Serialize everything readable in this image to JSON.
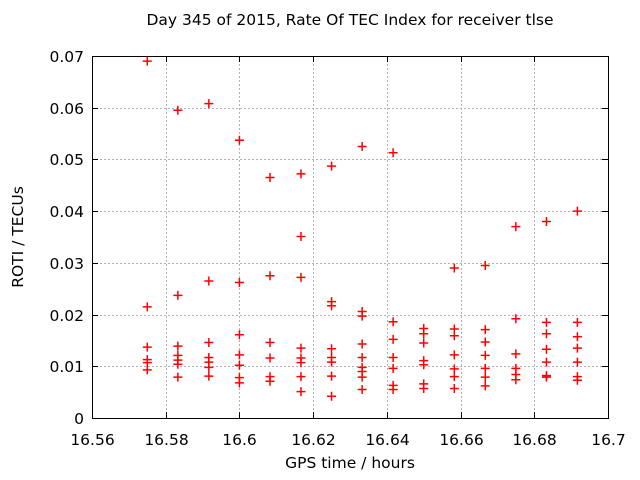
{
  "figure": {
    "title": "Day 345 of 2015, Rate Of TEC Index for receiver tlse",
    "xlabel": "GPS time / hours",
    "ylabel": "ROTI / TECUs"
  },
  "chart_data": {
    "type": "scatter",
    "title": "Day 345 of 2015, Rate Of TEC Index for receiver tlse",
    "xlabel": "GPS time / hours",
    "ylabel": "ROTI / TECUs",
    "xlim": [
      16.56,
      16.7
    ],
    "ylim": [
      0,
      0.07
    ],
    "grid": true,
    "legend_position": "none",
    "marker": "plus-cross",
    "marker_color": "#ff0000",
    "grid_color": "#b0b0b0",
    "axis_color": "#000000",
    "background_color": "#ffffff",
    "xtick_values": [
      16.56,
      16.58,
      16.6,
      16.62,
      16.64,
      16.66,
      16.68,
      16.7
    ],
    "xtick_labels": [
      "16.56",
      "16.58",
      "16.6",
      "16.62",
      "16.64",
      "16.66",
      "16.68",
      "16.7"
    ],
    "ytick_values": [
      0,
      0.01,
      0.02,
      0.03,
      0.04,
      0.05,
      0.06,
      0.07
    ],
    "ytick_labels": [
      "0",
      "0.01",
      "0.02",
      "0.03",
      "0.04",
      "0.05",
      "0.06",
      "0.07"
    ],
    "series": [
      {
        "name": "ROTI",
        "points": [
          [
            16.575,
            0.069
          ],
          [
            16.575,
            0.0215
          ],
          [
            16.575,
            0.0137
          ],
          [
            16.575,
            0.0113
          ],
          [
            16.575,
            0.0107
          ],
          [
            16.575,
            0.0093
          ],
          [
            16.5833,
            0.0595
          ],
          [
            16.5833,
            0.0237
          ],
          [
            16.5833,
            0.0139
          ],
          [
            16.5833,
            0.0121
          ],
          [
            16.5833,
            0.0112
          ],
          [
            16.5833,
            0.0104
          ],
          [
            16.5833,
            0.0079
          ],
          [
            16.5917,
            0.0608
          ],
          [
            16.5917,
            0.0265
          ],
          [
            16.5917,
            0.0146
          ],
          [
            16.5917,
            0.0117
          ],
          [
            16.5917,
            0.0108
          ],
          [
            16.5917,
            0.0098
          ],
          [
            16.5917,
            0.0081
          ],
          [
            16.6,
            0.0537
          ],
          [
            16.6,
            0.0262
          ],
          [
            16.6,
            0.0161
          ],
          [
            16.6,
            0.0122
          ],
          [
            16.6,
            0.0102
          ],
          [
            16.6,
            0.0078
          ],
          [
            16.6,
            0.0068
          ],
          [
            16.6083,
            0.0465
          ],
          [
            16.6083,
            0.0275
          ],
          [
            16.6083,
            0.0146
          ],
          [
            16.6083,
            0.0116
          ],
          [
            16.6083,
            0.008
          ],
          [
            16.6083,
            0.0071
          ],
          [
            16.6167,
            0.0472
          ],
          [
            16.6167,
            0.0351
          ],
          [
            16.6167,
            0.0272
          ],
          [
            16.6167,
            0.0135
          ],
          [
            16.6167,
            0.0116
          ],
          [
            16.6167,
            0.0107
          ],
          [
            16.6167,
            0.008
          ],
          [
            16.6167,
            0.0051
          ],
          [
            16.625,
            0.0487
          ],
          [
            16.625,
            0.0225
          ],
          [
            16.625,
            0.0217
          ],
          [
            16.625,
            0.0134
          ],
          [
            16.625,
            0.0117
          ],
          [
            16.625,
            0.0108
          ],
          [
            16.625,
            0.0081
          ],
          [
            16.625,
            0.0042
          ],
          [
            16.6333,
            0.0525
          ],
          [
            16.6333,
            0.0206
          ],
          [
            16.6333,
            0.0197
          ],
          [
            16.6333,
            0.0143
          ],
          [
            16.6333,
            0.0117
          ],
          [
            16.6333,
            0.0098
          ],
          [
            16.6333,
            0.009
          ],
          [
            16.6333,
            0.0079
          ],
          [
            16.6333,
            0.0055
          ],
          [
            16.6417,
            0.0513
          ],
          [
            16.6417,
            0.0186
          ],
          [
            16.6417,
            0.0152
          ],
          [
            16.6417,
            0.0117
          ],
          [
            16.6417,
            0.0096
          ],
          [
            16.6417,
            0.0063
          ],
          [
            16.6417,
            0.0055
          ],
          [
            16.65,
            0.0173
          ],
          [
            16.65,
            0.0163
          ],
          [
            16.65,
            0.0145
          ],
          [
            16.65,
            0.0111
          ],
          [
            16.65,
            0.0103
          ],
          [
            16.65,
            0.0066
          ],
          [
            16.65,
            0.0057
          ],
          [
            16.6583,
            0.029
          ],
          [
            16.6583,
            0.0172
          ],
          [
            16.6583,
            0.0159
          ],
          [
            16.6583,
            0.0122
          ],
          [
            16.6583,
            0.0095
          ],
          [
            16.6583,
            0.008
          ],
          [
            16.6583,
            0.0057
          ],
          [
            16.6667,
            0.0295
          ],
          [
            16.6667,
            0.0171
          ],
          [
            16.6667,
            0.0147
          ],
          [
            16.6667,
            0.0121
          ],
          [
            16.6667,
            0.0096
          ],
          [
            16.6667,
            0.0079
          ],
          [
            16.6667,
            0.0062
          ],
          [
            16.675,
            0.037
          ],
          [
            16.675,
            0.0192
          ],
          [
            16.675,
            0.0124
          ],
          [
            16.675,
            0.0096
          ],
          [
            16.675,
            0.0084
          ],
          [
            16.675,
            0.0074
          ],
          [
            16.6833,
            0.038
          ],
          [
            16.6833,
            0.0185
          ],
          [
            16.6833,
            0.0163
          ],
          [
            16.6833,
            0.0133
          ],
          [
            16.6833,
            0.0108
          ],
          [
            16.6833,
            0.0082
          ],
          [
            16.6833,
            0.0079
          ],
          [
            16.6917,
            0.04
          ],
          [
            16.6917,
            0.0185
          ],
          [
            16.6917,
            0.0157
          ],
          [
            16.6917,
            0.0135
          ],
          [
            16.6917,
            0.0108
          ],
          [
            16.6917,
            0.008
          ],
          [
            16.6917,
            0.0073
          ]
        ]
      }
    ]
  }
}
